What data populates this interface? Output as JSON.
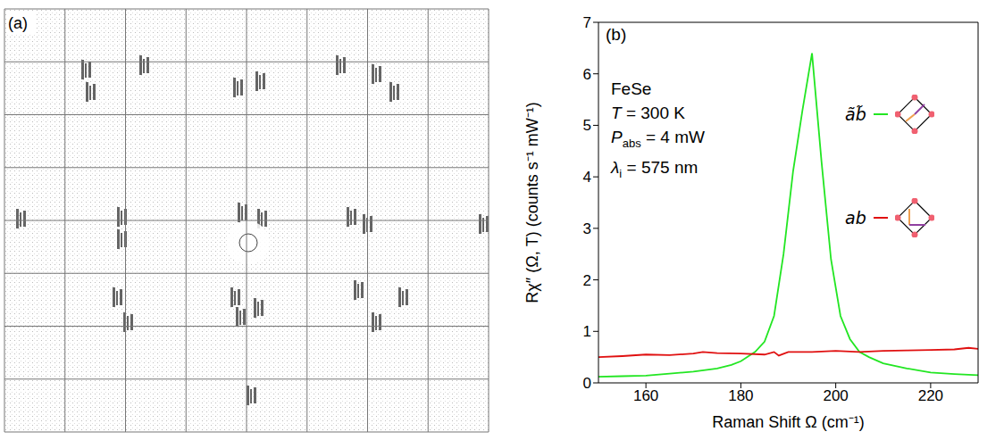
{
  "panel_a": {
    "label": "(a)"
  },
  "chart_data": {
    "type": "line",
    "panel_label": "(b)",
    "x_label": "Raman Shift Ω (cm⁻¹)",
    "y_label": "Rχ″ (Ω, T) (counts s⁻¹ mW⁻¹)",
    "annotations": [
      {
        "main": "FeSe"
      },
      {
        "main": "T",
        "tail": " = 300 K"
      },
      {
        "main": "P",
        "sub": "abs",
        "tail": " = 4 mW"
      },
      {
        "main": "λ",
        "sub": "i",
        "tail": " = 575 nm"
      }
    ],
    "xlim": [
      150,
      230
    ],
    "xticks": [
      160,
      180,
      200,
      220
    ],
    "ylim": [
      0,
      7
    ],
    "yticks": [
      0,
      1,
      2,
      3,
      4,
      5,
      6,
      7
    ],
    "grid": false,
    "legend": "right",
    "series": [
      {
        "name": "ãb̃",
        "color": "#22e622",
        "x": [
          150,
          155,
          160,
          165,
          170,
          175,
          178,
          180,
          183,
          185,
          187,
          189,
          191,
          193,
          195,
          197,
          199,
          201,
          203,
          205,
          207,
          210,
          215,
          220,
          225,
          230
        ],
        "values": [
          0.12,
          0.13,
          0.14,
          0.18,
          0.22,
          0.28,
          0.35,
          0.42,
          0.6,
          0.8,
          1.3,
          2.5,
          4.1,
          5.3,
          6.4,
          4.3,
          2.4,
          1.3,
          0.85,
          0.6,
          0.5,
          0.38,
          0.28,
          0.2,
          0.17,
          0.15
        ]
      },
      {
        "name": "ab",
        "color": "#e01010",
        "x": [
          150,
          155,
          160,
          165,
          170,
          172,
          175,
          180,
          185,
          187,
          188,
          190,
          195,
          200,
          205,
          210,
          215,
          220,
          225,
          228,
          230
        ],
        "values": [
          0.5,
          0.52,
          0.55,
          0.54,
          0.57,
          0.6,
          0.58,
          0.57,
          0.55,
          0.6,
          0.53,
          0.6,
          0.6,
          0.62,
          0.6,
          0.62,
          0.63,
          0.64,
          0.65,
          0.68,
          0.66
        ]
      }
    ]
  }
}
